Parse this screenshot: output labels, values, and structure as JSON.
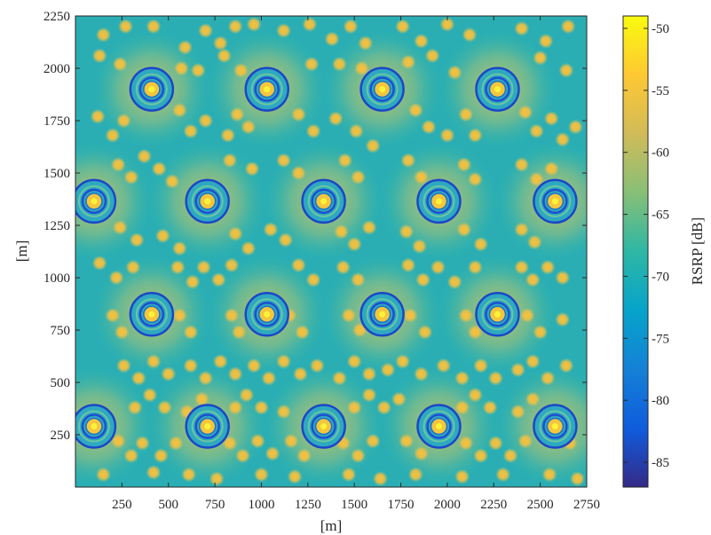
{
  "chart_data": {
    "type": "heatmap",
    "title": "",
    "xlabel": "[m]",
    "ylabel": "[m]",
    "xlim": [
      0,
      2750
    ],
    "ylim": [
      0,
      2250
    ],
    "xticks": [
      250,
      500,
      750,
      1000,
      1250,
      1500,
      1750,
      2000,
      2250,
      2500,
      2750
    ],
    "yticks": [
      250,
      500,
      750,
      1000,
      1250,
      1500,
      1750,
      2000,
      2250
    ],
    "grid": false,
    "colorbar": {
      "label": "RSRP [dB]",
      "range": [
        -87,
        -49
      ],
      "ticks": [
        -50,
        -55,
        -60,
        -65,
        -70,
        -75,
        -80,
        -85
      ],
      "colormap": "parula",
      "stops": [
        "#352a87",
        "#0f5cdd",
        "#1481d6",
        "#06a4ca",
        "#2eb7a4",
        "#87bf77",
        "#d1bb59",
        "#fec832",
        "#f9fb0e"
      ]
    },
    "base_stations": [
      {
        "x": 410,
        "y": 1900
      },
      {
        "x": 1030,
        "y": 1900
      },
      {
        "x": 1650,
        "y": 1900
      },
      {
        "x": 2270,
        "y": 1900
      },
      {
        "x": 100,
        "y": 1365
      },
      {
        "x": 710,
        "y": 1365
      },
      {
        "x": 1335,
        "y": 1365
      },
      {
        "x": 1955,
        "y": 1365
      },
      {
        "x": 2580,
        "y": 1365
      },
      {
        "x": 410,
        "y": 825
      },
      {
        "x": 1030,
        "y": 825
      },
      {
        "x": 1650,
        "y": 825
      },
      {
        "x": 2270,
        "y": 825
      },
      {
        "x": 100,
        "y": 290
      },
      {
        "x": 710,
        "y": 290
      },
      {
        "x": 1335,
        "y": 290
      },
      {
        "x": 1955,
        "y": 290
      },
      {
        "x": 2580,
        "y": 290
      }
    ],
    "hotspots": [
      [
        150,
        2160
      ],
      [
        270,
        2200
      ],
      [
        420,
        2200
      ],
      [
        590,
        2100
      ],
      [
        700,
        2180
      ],
      [
        780,
        2120
      ],
      [
        860,
        2200
      ],
      [
        960,
        2210
      ],
      [
        1120,
        2180
      ],
      [
        1260,
        2210
      ],
      [
        1380,
        2140
      ],
      [
        1480,
        2200
      ],
      [
        1560,
        2120
      ],
      [
        1760,
        2200
      ],
      [
        1860,
        2130
      ],
      [
        2000,
        2210
      ],
      [
        2120,
        2160
      ],
      [
        2400,
        2190
      ],
      [
        2530,
        2130
      ],
      [
        2650,
        2200
      ],
      [
        130,
        2060
      ],
      [
        240,
        2020
      ],
      [
        570,
        2000
      ],
      [
        660,
        1990
      ],
      [
        800,
        2060
      ],
      [
        890,
        1990
      ],
      [
        1270,
        2020
      ],
      [
        1420,
        2020
      ],
      [
        1540,
        2000
      ],
      [
        1790,
        2030
      ],
      [
        1920,
        2060
      ],
      [
        2040,
        1980
      ],
      [
        2500,
        2050
      ],
      [
        2640,
        1990
      ],
      [
        120,
        1770
      ],
      [
        200,
        1680
      ],
      [
        260,
        1750
      ],
      [
        560,
        1800
      ],
      [
        620,
        1700
      ],
      [
        700,
        1750
      ],
      [
        820,
        1680
      ],
      [
        870,
        1780
      ],
      [
        930,
        1720
      ],
      [
        1200,
        1780
      ],
      [
        1280,
        1700
      ],
      [
        1400,
        1760
      ],
      [
        1510,
        1700
      ],
      [
        1600,
        1630
      ],
      [
        1830,
        1800
      ],
      [
        1900,
        1720
      ],
      [
        2000,
        1680
      ],
      [
        2100,
        1780
      ],
      [
        2150,
        1680
      ],
      [
        2420,
        1790
      ],
      [
        2480,
        1700
      ],
      [
        2560,
        1760
      ],
      [
        2620,
        1660
      ],
      [
        2690,
        1720
      ],
      [
        230,
        1540
      ],
      [
        300,
        1480
      ],
      [
        370,
        1580
      ],
      [
        450,
        1520
      ],
      [
        520,
        1460
      ],
      [
        830,
        1560
      ],
      [
        950,
        1520
      ],
      [
        1120,
        1560
      ],
      [
        1200,
        1500
      ],
      [
        1450,
        1560
      ],
      [
        1520,
        1480
      ],
      [
        1790,
        1560
      ],
      [
        1860,
        1480
      ],
      [
        2090,
        1540
      ],
      [
        2150,
        1470
      ],
      [
        2400,
        1540
      ],
      [
        2480,
        1470
      ],
      [
        2560,
        1520
      ],
      [
        240,
        1240
      ],
      [
        330,
        1180
      ],
      [
        470,
        1200
      ],
      [
        560,
        1140
      ],
      [
        860,
        1210
      ],
      [
        930,
        1140
      ],
      [
        1050,
        1230
      ],
      [
        1130,
        1180
      ],
      [
        1430,
        1220
      ],
      [
        1500,
        1160
      ],
      [
        1580,
        1240
      ],
      [
        1780,
        1220
      ],
      [
        1850,
        1150
      ],
      [
        2090,
        1230
      ],
      [
        2180,
        1160
      ],
      [
        2400,
        1230
      ],
      [
        2470,
        1170
      ],
      [
        130,
        1070
      ],
      [
        220,
        1000
      ],
      [
        310,
        1050
      ],
      [
        550,
        1050
      ],
      [
        630,
        980
      ],
      [
        690,
        1050
      ],
      [
        770,
        990
      ],
      [
        840,
        1060
      ],
      [
        1200,
        1060
      ],
      [
        1280,
        990
      ],
      [
        1440,
        1050
      ],
      [
        1520,
        990
      ],
      [
        1790,
        1060
      ],
      [
        1870,
        990
      ],
      [
        1950,
        1050
      ],
      [
        2040,
        980
      ],
      [
        2150,
        1050
      ],
      [
        2400,
        1050
      ],
      [
        2460,
        990
      ],
      [
        2540,
        1050
      ],
      [
        2620,
        1000
      ],
      [
        200,
        820
      ],
      [
        250,
        740
      ],
      [
        560,
        820
      ],
      [
        620,
        740
      ],
      [
        840,
        820
      ],
      [
        880,
        740
      ],
      [
        1150,
        820
      ],
      [
        1220,
        740
      ],
      [
        1470,
        820
      ],
      [
        1530,
        750
      ],
      [
        1800,
        820
      ],
      [
        1880,
        740
      ],
      [
        2100,
        820
      ],
      [
        2150,
        740
      ],
      [
        2430,
        820
      ],
      [
        2500,
        740
      ],
      [
        2620,
        800
      ],
      [
        260,
        580
      ],
      [
        340,
        520
      ],
      [
        420,
        600
      ],
      [
        500,
        540
      ],
      [
        620,
        580
      ],
      [
        700,
        520
      ],
      [
        780,
        600
      ],
      [
        860,
        540
      ],
      [
        960,
        580
      ],
      [
        1040,
        520
      ],
      [
        1120,
        600
      ],
      [
        1210,
        540
      ],
      [
        1300,
        580
      ],
      [
        1420,
        520
      ],
      [
        1500,
        600
      ],
      [
        1580,
        540
      ],
      [
        1680,
        560
      ],
      [
        1760,
        600
      ],
      [
        1860,
        540
      ],
      [
        1980,
        580
      ],
      [
        2080,
        520
      ],
      [
        2180,
        580
      ],
      [
        2260,
        520
      ],
      [
        2380,
        560
      ],
      [
        2460,
        600
      ],
      [
        2540,
        520
      ],
      [
        2640,
        580
      ],
      [
        320,
        380
      ],
      [
        400,
        440
      ],
      [
        480,
        380
      ],
      [
        600,
        360
      ],
      [
        680,
        420
      ],
      [
        860,
        380
      ],
      [
        920,
        440
      ],
      [
        1000,
        380
      ],
      [
        1120,
        360
      ],
      [
        1500,
        380
      ],
      [
        1580,
        440
      ],
      [
        1660,
        380
      ],
      [
        1740,
        420
      ],
      [
        2080,
        380
      ],
      [
        2150,
        440
      ],
      [
        2230,
        380
      ],
      [
        2380,
        360
      ],
      [
        2460,
        420
      ],
      [
        230,
        220
      ],
      [
        300,
        150
      ],
      [
        360,
        210
      ],
      [
        460,
        150
      ],
      [
        540,
        210
      ],
      [
        830,
        210
      ],
      [
        900,
        150
      ],
      [
        980,
        220
      ],
      [
        1060,
        160
      ],
      [
        1160,
        220
      ],
      [
        1230,
        150
      ],
      [
        1440,
        210
      ],
      [
        1520,
        150
      ],
      [
        1600,
        220
      ],
      [
        1780,
        220
      ],
      [
        1860,
        160
      ],
      [
        2100,
        210
      ],
      [
        2180,
        150
      ],
      [
        2260,
        210
      ],
      [
        2340,
        150
      ],
      [
        2420,
        220
      ],
      [
        2660,
        210
      ],
      [
        150,
        60
      ],
      [
        420,
        70
      ],
      [
        610,
        60
      ],
      [
        760,
        40
      ],
      [
        1000,
        60
      ],
      [
        1180,
        50
      ],
      [
        1470,
        60
      ],
      [
        1640,
        40
      ],
      [
        1830,
        60
      ],
      [
        2080,
        50
      ],
      [
        2300,
        60
      ],
      [
        2550,
        60
      ],
      [
        2700,
        40
      ]
    ]
  }
}
